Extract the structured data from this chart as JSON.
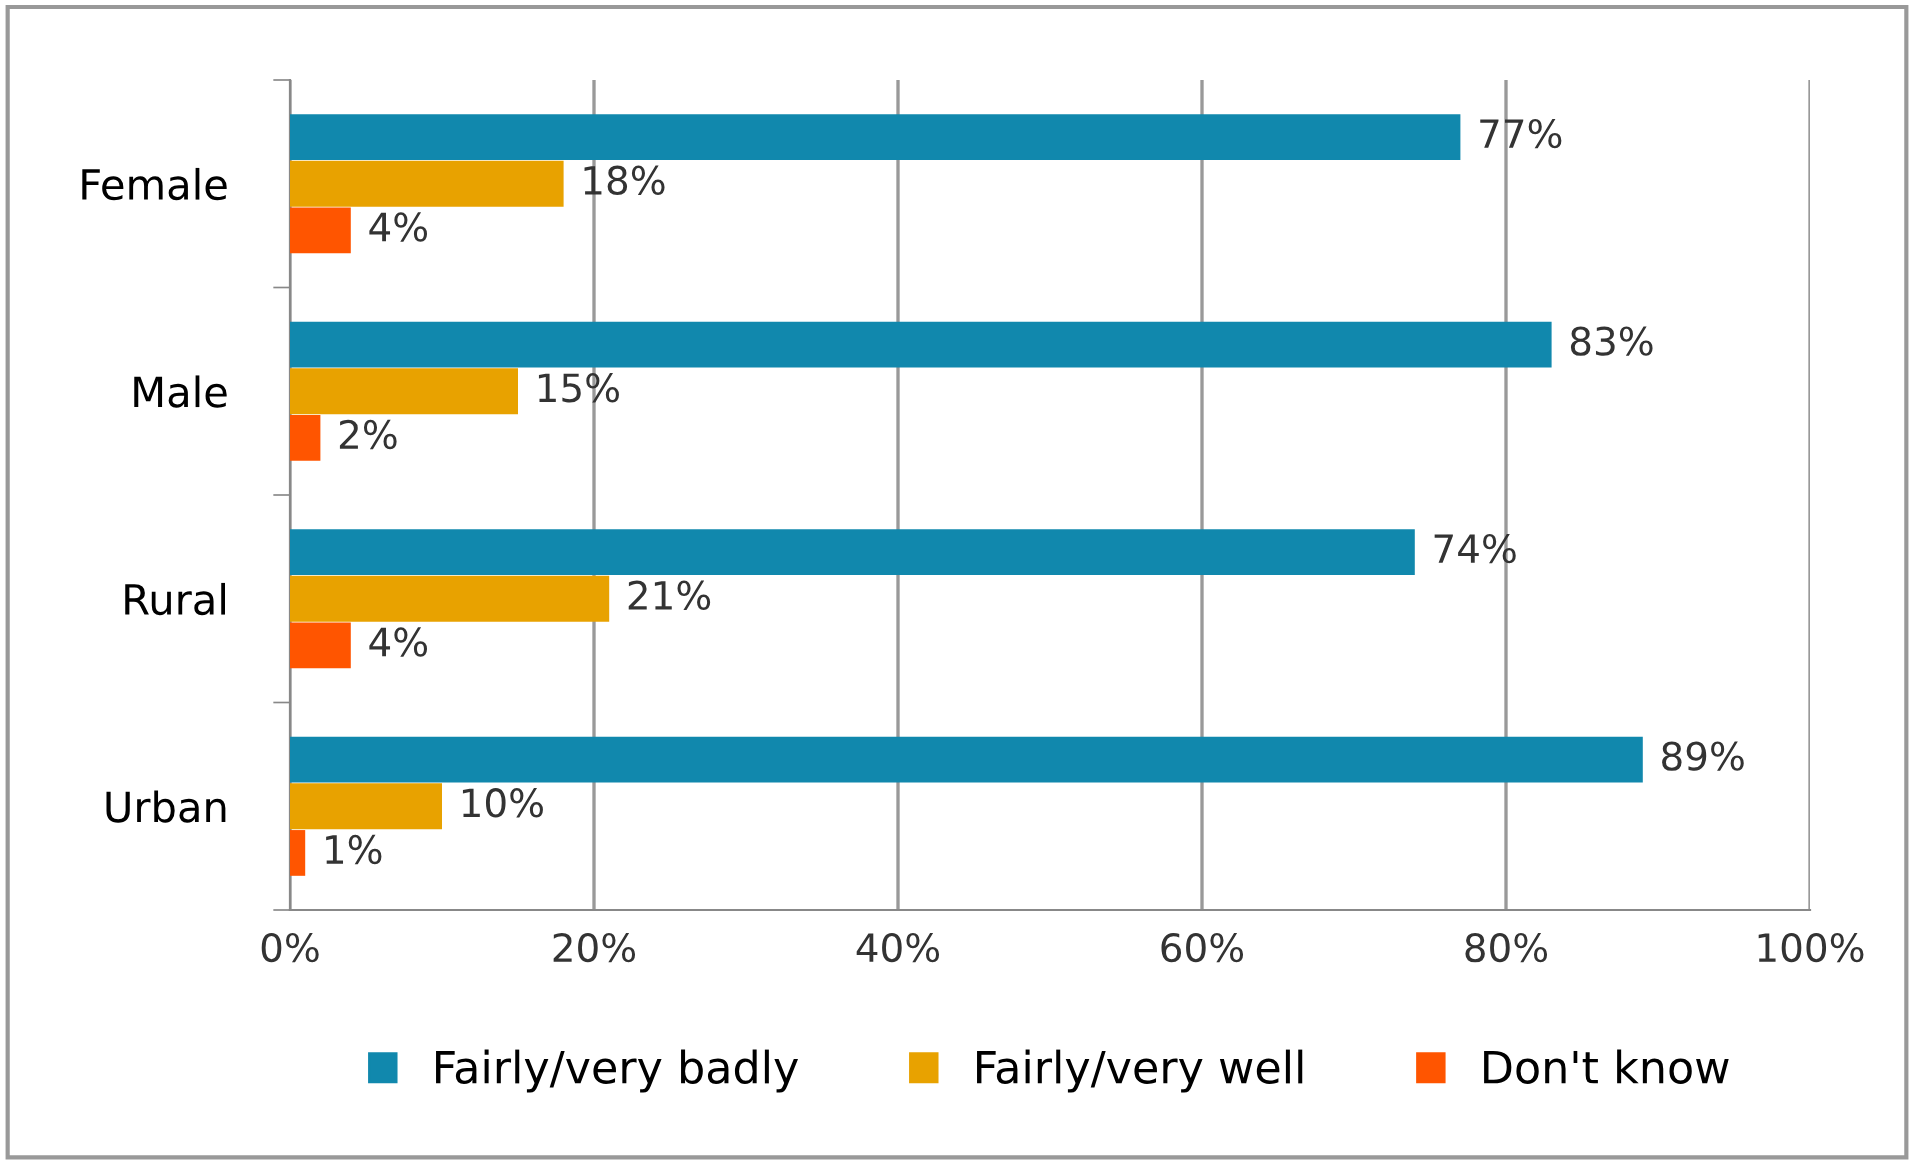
{
  "chart_data": {
    "type": "bar",
    "orientation": "horizontal",
    "categories": [
      "Female",
      "Male",
      "Rural",
      "Urban"
    ],
    "series": [
      {
        "name": "Fairly/very badly",
        "color": "#1188ad",
        "values": [
          77,
          83,
          74,
          89
        ],
        "value_labels": [
          "77%",
          "83%",
          "74%",
          "89%"
        ]
      },
      {
        "name": "Fairly/very well",
        "color": "#e8a200",
        "values": [
          18,
          15,
          21,
          10
        ],
        "value_labels": [
          "18%",
          "15%",
          "21%",
          "10%"
        ]
      },
      {
        "name": "Don't know",
        "color": "#ff5500",
        "values": [
          4,
          2,
          4,
          1
        ],
        "value_labels": [
          "4%",
          "2%",
          "4%",
          "1%"
        ]
      }
    ],
    "xlim": [
      0,
      100
    ],
    "xticks": [
      {
        "value": 0,
        "label": "0%"
      },
      {
        "value": 20,
        "label": "20%"
      },
      {
        "value": 40,
        "label": "40%"
      },
      {
        "value": 60,
        "label": "60%"
      },
      {
        "value": 80,
        "label": "80%"
      },
      {
        "value": 100,
        "label": "100%"
      }
    ],
    "grid": "x",
    "legend": "bottom"
  }
}
